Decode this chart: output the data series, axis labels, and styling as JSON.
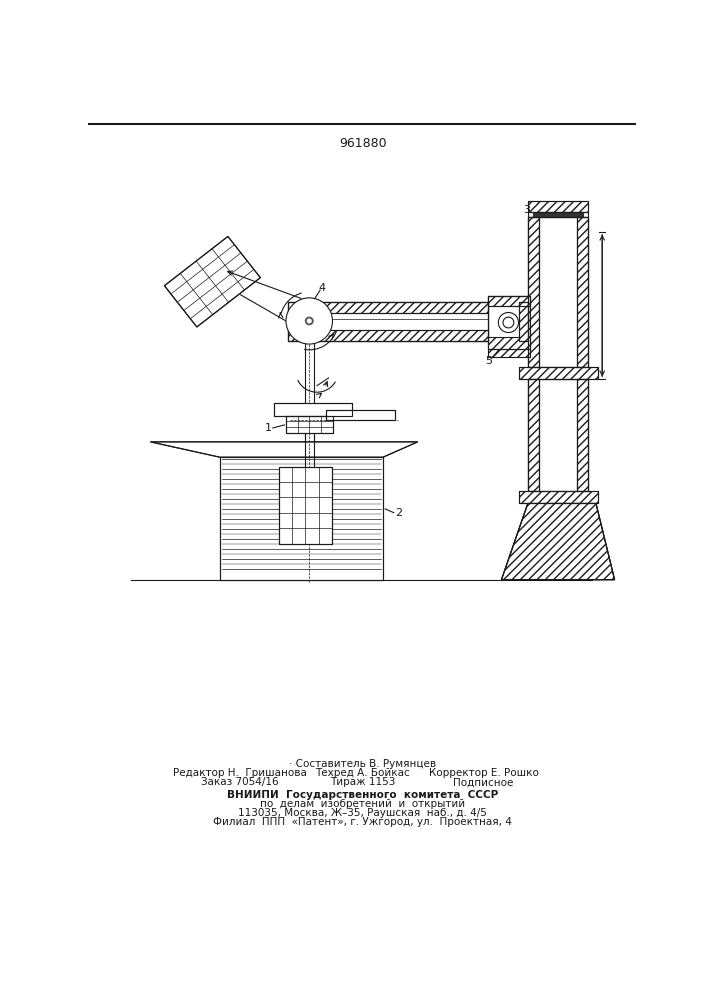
{
  "title": "961880",
  "bg_color": "#ffffff",
  "line_color": "#1a1a1a",
  "footer_col1_line1": "Редактор Н.  Гришанова",
  "footer_col1_line2": "Заказ 7054/16",
  "footer_col2_line0": "· Составитель В. Румянцев",
  "footer_col2_line1": "Техред А. Бойкас",
  "footer_col2_line2": "Тираж 1153",
  "footer_col3_line1": "Корректор Е. Рошко",
  "footer_col3_line2": "Подписное",
  "footer_vniiipi1": "ВНИИПИ  Государственного  комитета  СССР",
  "footer_vniiipi2": "по  делам  изобретений  и  открытий",
  "footer_addr1": "113035, Москва, Ж–35, Раушская  наб., д. 4/5",
  "footer_addr2": "Филиал  ППП  «Патент», г. Ужгород, ул.  Проектная, 4"
}
